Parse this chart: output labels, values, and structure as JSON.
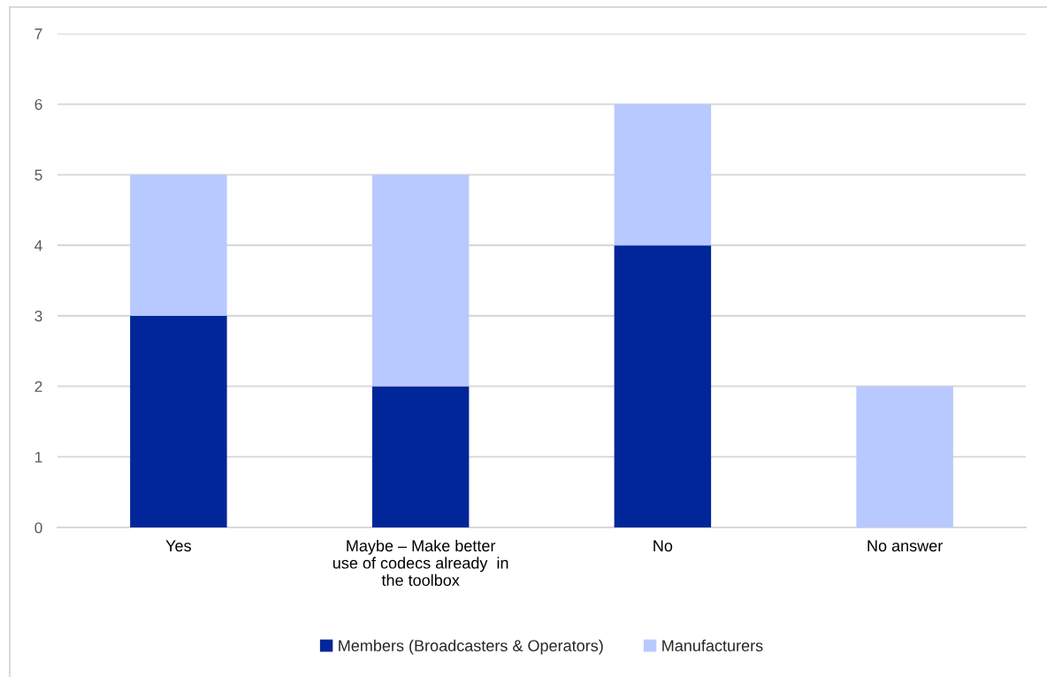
{
  "chart_data": {
    "type": "bar",
    "stacked": true,
    "categories": [
      "Yes",
      "Maybe – Make better\nuse of codecs already  in\nthe toolbox",
      "No",
      "No answer"
    ],
    "series": [
      {
        "name": "Members (Broadcasters & Operators)",
        "color": "#002699",
        "values": [
          3,
          2,
          4,
          null
        ]
      },
      {
        "name": "Manufacturers",
        "color": "#b8c9ff",
        "values": [
          2,
          3,
          2,
          2
        ]
      }
    ],
    "ylim": [
      0,
      7
    ],
    "yticks": [
      0,
      1,
      2,
      3,
      4,
      5,
      6,
      7
    ],
    "grid": "y",
    "legend": "bottom"
  }
}
